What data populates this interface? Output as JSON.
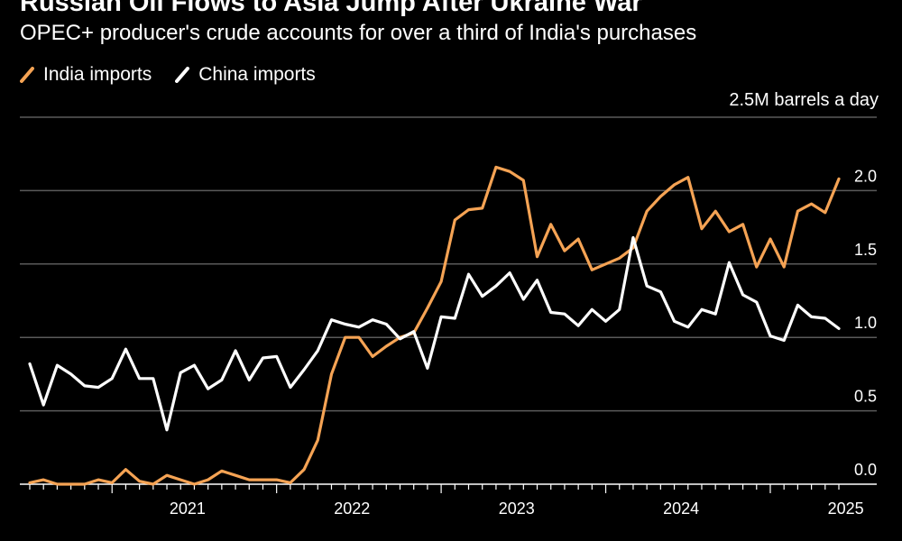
{
  "chart_data": {
    "type": "line",
    "title": "Russian Oil Flows to Asia Jump After Ukraine War",
    "subtitle": "OPEC+ producer's crude accounts for over a third of India's purchases",
    "unit_label": "2.5M barrels a day",
    "y_ticks": [
      "0.0",
      "0.5",
      "1.0",
      "1.5",
      "2.0"
    ],
    "y_tick_values": [
      0,
      0.5,
      1.0,
      1.5,
      2.0
    ],
    "ylim": [
      0,
      2.5
    ],
    "x_ticks": [
      "2021",
      "2022",
      "2023",
      "2024",
      "2025"
    ],
    "x_tick_values": [
      "2021-01",
      "2022-01",
      "2023-01",
      "2024-01",
      "2025-01"
    ],
    "xlim": [
      "2020-07",
      "2025-06"
    ],
    "legend_position": "top-left",
    "grid": "horizontal",
    "colors": {
      "india": "#f5a354",
      "china": "#ffffff",
      "grid": "#5a5a5a",
      "background": "#000000"
    },
    "x": [
      "2020-07",
      "2020-08",
      "2020-09",
      "2020-10",
      "2020-11",
      "2020-12",
      "2021-01",
      "2021-02",
      "2021-03",
      "2021-04",
      "2021-05",
      "2021-06",
      "2021-07",
      "2021-08",
      "2021-09",
      "2021-10",
      "2021-11",
      "2021-12",
      "2022-01",
      "2022-02",
      "2022-03",
      "2022-04",
      "2022-05",
      "2022-06",
      "2022-07",
      "2022-08",
      "2022-09",
      "2022-10",
      "2022-11",
      "2022-12",
      "2023-01",
      "2023-02",
      "2023-03",
      "2023-04",
      "2023-05",
      "2023-06",
      "2023-07",
      "2023-08",
      "2023-09",
      "2023-10",
      "2023-11",
      "2023-12",
      "2024-01",
      "2024-02",
      "2024-03",
      "2024-04",
      "2024-05",
      "2024-06",
      "2024-07",
      "2024-08",
      "2024-09",
      "2024-10",
      "2024-11",
      "2024-12",
      "2025-01",
      "2025-02",
      "2025-03",
      "2025-04",
      "2025-05",
      "2025-06"
    ],
    "series": [
      {
        "name": "India imports",
        "values": [
          0.01,
          0.03,
          0.0,
          0.0,
          0.0,
          0.03,
          0.01,
          0.1,
          0.02,
          0.0,
          0.06,
          0.03,
          0.0,
          0.03,
          0.09,
          0.06,
          0.03,
          0.03,
          0.03,
          0.01,
          0.1,
          0.3,
          0.75,
          1.0,
          1.0,
          0.87,
          0.94,
          1.0,
          1.03,
          1.2,
          1.38,
          1.8,
          1.87,
          1.88,
          2.16,
          2.13,
          2.07,
          1.55,
          1.77,
          1.59,
          1.67,
          1.46,
          1.5,
          1.54,
          1.61,
          1.86,
          1.96,
          2.04,
          2.09,
          1.74,
          1.86,
          1.72,
          1.77,
          1.48,
          1.67,
          1.48,
          1.86,
          1.91,
          1.85,
          2.08
        ]
      },
      {
        "name": "China imports",
        "values": [
          0.82,
          0.54,
          0.81,
          0.75,
          0.67,
          0.66,
          0.72,
          0.92,
          0.72,
          0.72,
          0.37,
          0.76,
          0.81,
          0.65,
          0.71,
          0.91,
          0.71,
          0.86,
          0.87,
          0.66,
          0.78,
          0.91,
          1.12,
          1.09,
          1.07,
          1.12,
          1.09,
          0.99,
          1.04,
          0.79,
          1.14,
          1.13,
          1.43,
          1.28,
          1.35,
          1.44,
          1.26,
          1.39,
          1.17,
          1.16,
          1.08,
          1.19,
          1.11,
          1.19,
          1.68,
          1.35,
          1.31,
          1.11,
          1.07,
          1.19,
          1.16,
          1.51,
          1.29,
          1.24,
          1.01,
          0.98,
          1.22,
          1.14,
          1.13,
          1.06
        ]
      }
    ]
  }
}
